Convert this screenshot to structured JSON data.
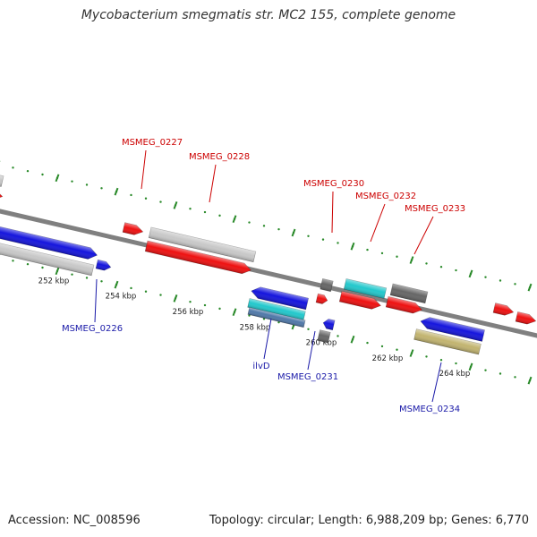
{
  "title": "Mycobacterium smegmatis str. MC2 155, complete genome",
  "footer": {
    "accession": "Accession: NC_008596",
    "summary": "Topology: circular; Length: 6,988,209 bp; Genes: 6,770"
  },
  "colors": {
    "backbone": "#808080",
    "tick": "#2a8a2a",
    "gene_label_top": "#cc0000",
    "gene_label_bottom": "#1a1aa8",
    "red": "#ee1111",
    "blue": "#1515dd",
    "gray": "#c8c8c8",
    "cyan": "#22c8cc",
    "dark": "#666666",
    "steel": "#5078a8",
    "khaki": "#c2b470"
  },
  "scale_labels": [
    "252 kbp",
    "254 kbp",
    "256 kbp",
    "258 kbp",
    "260 kbp",
    "262 kbp",
    "264 kbp"
  ],
  "gene_labels_top": [
    "MSMEG_0227",
    "MSMEG_0228",
    "MSMEG_0230",
    "MSMEG_0232",
    "MSMEG_0233"
  ],
  "gene_labels_bottom": [
    "MSMEG_0226",
    "ilvD",
    "MSMEG_0231",
    "MSMEG_0234"
  ],
  "features": [
    {
      "id": "f-red-left-edge",
      "color": "red",
      "dir": "fwd"
    },
    {
      "id": "f-gray-left-edge",
      "color": "gray",
      "dir": "none"
    },
    {
      "id": "f-blue-0226",
      "color": "blue",
      "dir": "fwd"
    },
    {
      "id": "f-blue-small-0226",
      "color": "blue",
      "dir": "fwd"
    },
    {
      "id": "f-gray-below-0226",
      "color": "gray",
      "dir": "none"
    },
    {
      "id": "f-red-0227",
      "color": "red",
      "dir": "fwd"
    },
    {
      "id": "f-gray-0228",
      "color": "gray",
      "dir": "none"
    },
    {
      "id": "f-red-0228",
      "color": "red",
      "dir": "fwd"
    },
    {
      "id": "f-blue-ilvD",
      "color": "blue",
      "dir": "rev"
    },
    {
      "id": "f-cyan-ilvD",
      "color": "cyan",
      "dir": "none"
    },
    {
      "id": "f-steel-ilvD",
      "color": "steel",
      "dir": "none"
    },
    {
      "id": "f-dark-0230",
      "color": "dark",
      "dir": "none"
    },
    {
      "id": "f-red-0230",
      "color": "red",
      "dir": "fwd"
    },
    {
      "id": "f-blue-0231",
      "color": "blue",
      "dir": "rev"
    },
    {
      "id": "f-dark-0231",
      "color": "dark",
      "dir": "none"
    },
    {
      "id": "f-cyan-0232",
      "color": "cyan",
      "dir": "none"
    },
    {
      "id": "f-red-0232",
      "color": "red",
      "dir": "fwd"
    },
    {
      "id": "f-dark-0233",
      "color": "dark",
      "dir": "none"
    },
    {
      "id": "f-red-0233",
      "color": "red",
      "dir": "fwd"
    },
    {
      "id": "f-blue-0234",
      "color": "blue",
      "dir": "rev"
    },
    {
      "id": "f-khaki-0234",
      "color": "khaki",
      "dir": "none"
    },
    {
      "id": "f-red-right-1",
      "color": "red",
      "dir": "fwd"
    },
    {
      "id": "f-red-right-2",
      "color": "red",
      "dir": "fwd"
    }
  ]
}
